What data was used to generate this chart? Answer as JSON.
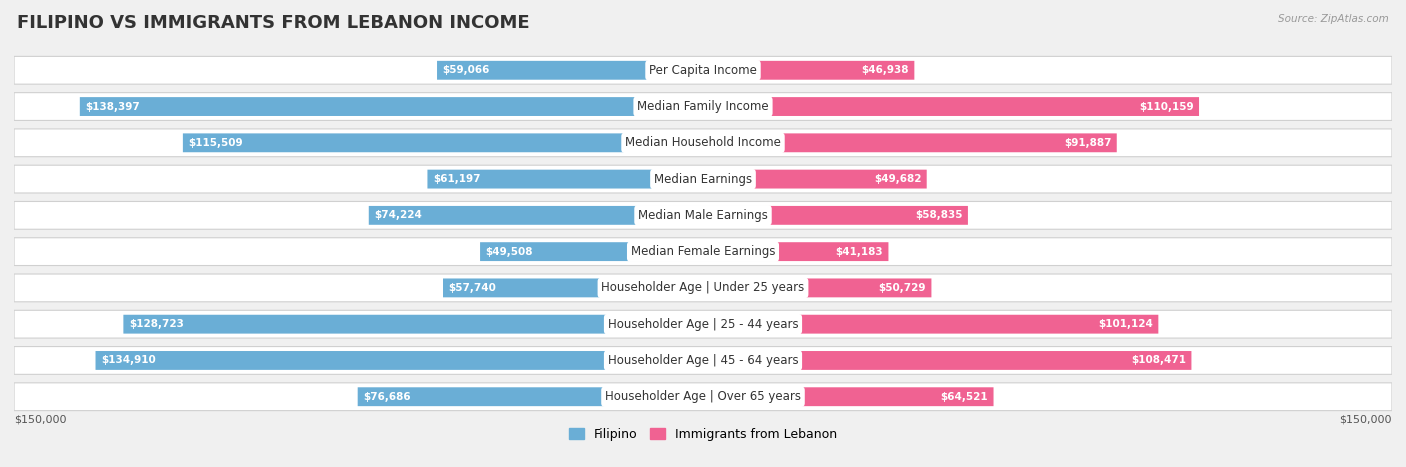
{
  "title": "FILIPINO VS IMMIGRANTS FROM LEBANON INCOME",
  "source": "Source: ZipAtlas.com",
  "categories": [
    "Per Capita Income",
    "Median Family Income",
    "Median Household Income",
    "Median Earnings",
    "Median Male Earnings",
    "Median Female Earnings",
    "Householder Age | Under 25 years",
    "Householder Age | 25 - 44 years",
    "Householder Age | 45 - 64 years",
    "Householder Age | Over 65 years"
  ],
  "filipino_values": [
    59066,
    138397,
    115509,
    61197,
    74224,
    49508,
    57740,
    128723,
    134910,
    76686
  ],
  "lebanon_values": [
    46938,
    110159,
    91887,
    49682,
    58835,
    41183,
    50729,
    101124,
    108471,
    64521
  ],
  "max_value": 150000,
  "filipino_color": "#6aaed6",
  "lebanon_color": "#f06292",
  "filipino_color_light": "#aecfe8",
  "lebanon_color_light": "#f8bbd0",
  "filipino_label": "Filipino",
  "lebanon_label": "Immigrants from Lebanon",
  "background_color": "#f0f0f0",
  "row_bg_color": "#ffffff",
  "value_inside_color": "#ffffff",
  "value_outside_color": "#555555",
  "title_fontsize": 13,
  "inside_threshold_ratio": 0.25
}
